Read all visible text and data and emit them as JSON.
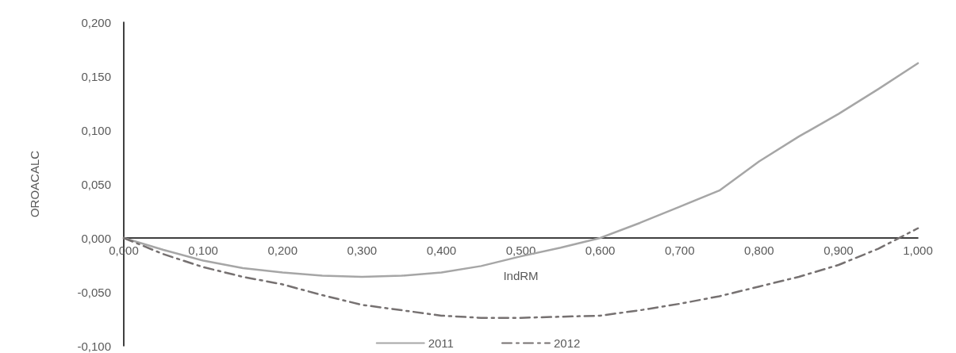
{
  "chart_data": {
    "type": "line",
    "xlabel": "IndRM",
    "ylabel": "OROACALC",
    "x": [
      0,
      0.05,
      0.1,
      0.15,
      0.2,
      0.25,
      0.3,
      0.35,
      0.4,
      0.45,
      0.5,
      0.55,
      0.6,
      0.65,
      0.7,
      0.75,
      0.8,
      0.85,
      0.9,
      0.95,
      1.0
    ],
    "series": [
      {
        "name": "2011",
        "color": "#a6a6a6",
        "line_style": "solid",
        "values": [
          0,
          -0.011,
          -0.021,
          -0.028,
          -0.032,
          -0.035,
          -0.036,
          -0.035,
          -0.032,
          -0.026,
          -0.017,
          -0.009,
          0,
          0.014,
          0.029,
          0.044,
          0.071,
          0.094,
          0.115,
          0.138,
          0.162
        ]
      },
      {
        "name": "2012",
        "color": "#767171",
        "line_style": "dashed",
        "values": [
          0,
          -0.015,
          -0.027,
          -0.036,
          -0.043,
          -0.053,
          -0.062,
          -0.067,
          -0.072,
          -0.074,
          -0.074,
          -0.073,
          -0.072,
          -0.067,
          -0.061,
          -0.054,
          -0.045,
          -0.036,
          -0.025,
          -0.01,
          0.009
        ]
      }
    ],
    "xlim": [
      0,
      1
    ],
    "xticks": [
      {
        "value": 0,
        "label": "0,000"
      },
      {
        "value": 0.1,
        "label": "0,100"
      },
      {
        "value": 0.2,
        "label": "0,200"
      },
      {
        "value": 0.3,
        "label": "0,300"
      },
      {
        "value": 0.4,
        "label": "0,400"
      },
      {
        "value": 0.5,
        "label": "0,500"
      },
      {
        "value": 0.6,
        "label": "0,600"
      },
      {
        "value": 0.7,
        "label": "0,700"
      },
      {
        "value": 0.8,
        "label": "0,800"
      },
      {
        "value": 0.9,
        "label": "0,900"
      },
      {
        "value": 1.0,
        "label": "1,000"
      }
    ],
    "ylim": [
      -0.1,
      0.2
    ],
    "yticks": [
      {
        "value": -0.1,
        "label": "-0,100"
      },
      {
        "value": -0.05,
        "label": "-0,050"
      },
      {
        "value": 0,
        "label": "0,000"
      },
      {
        "value": 0.05,
        "label": "0,050"
      },
      {
        "value": 0.1,
        "label": "0,100"
      },
      {
        "value": 0.15,
        "label": "0,150"
      },
      {
        "value": 0.2,
        "label": "0,200"
      }
    ],
    "grid": false,
    "legend": "bottom",
    "marker": "none"
  }
}
